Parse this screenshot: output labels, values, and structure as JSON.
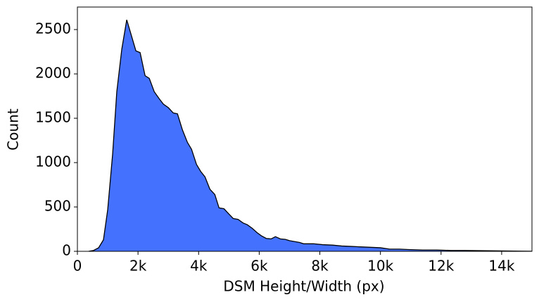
{
  "chart_data": {
    "type": "area",
    "xlabel": "DSM Height/Width (px)",
    "ylabel": "Count",
    "color": "#4472ff",
    "edgecolor": "#000000",
    "x": [
      372,
      535,
      700,
      860,
      1000,
      1163,
      1300,
      1465,
      1628,
      1767,
      1930,
      2070,
      2233,
      2372,
      2535,
      2700,
      2837,
      3000,
      3163,
      3302,
      3465,
      3628,
      3767,
      3930,
      4070,
      4210,
      4372,
      4535,
      4674,
      4837,
      5000,
      5140,
      5302,
      5465,
      5605,
      5767,
      5930,
      6070,
      6233,
      6395,
      6535,
      6698,
      6860,
      7000,
      7163,
      7326,
      7465,
      7791,
      8093,
      8419,
      8721,
      9047,
      9349,
      9674,
      10000,
      10302,
      10628,
      10930,
      11395,
      11860,
      12326,
      12791,
      13256,
      13721,
      14186,
      14651,
      15000
    ],
    "values": [
      0,
      10,
      40,
      130,
      470,
      1100,
      1800,
      2280,
      2610,
      2450,
      2260,
      2240,
      1980,
      1950,
      1800,
      1720,
      1660,
      1620,
      1560,
      1550,
      1370,
      1230,
      1150,
      980,
      900,
      840,
      700,
      640,
      490,
      480,
      420,
      370,
      360,
      320,
      300,
      260,
      210,
      175,
      145,
      140,
      165,
      140,
      135,
      120,
      110,
      100,
      85,
      85,
      75,
      70,
      60,
      55,
      50,
      45,
      40,
      25,
      25,
      20,
      15,
      15,
      10,
      10,
      8,
      6,
      4,
      2,
      1
    ],
    "xlim": [
      0,
      15000
    ],
    "xticks": [
      0,
      {
        "value": 2000,
        "label": "2k"
      },
      {
        "value": 4000,
        "label": "4k"
      },
      {
        "value": 6000,
        "label": "6k"
      },
      {
        "value": 8000,
        "label": "8k"
      },
      {
        "value": 10000,
        "label": "10k"
      },
      {
        "value": 12000,
        "label": "12k"
      },
      {
        "value": 14000,
        "label": "14k"
      }
    ],
    "ylim": [
      0,
      2754
    ],
    "yticks": [
      0,
      500,
      1000,
      1500,
      2000,
      2500
    ],
    "grid": false
  }
}
